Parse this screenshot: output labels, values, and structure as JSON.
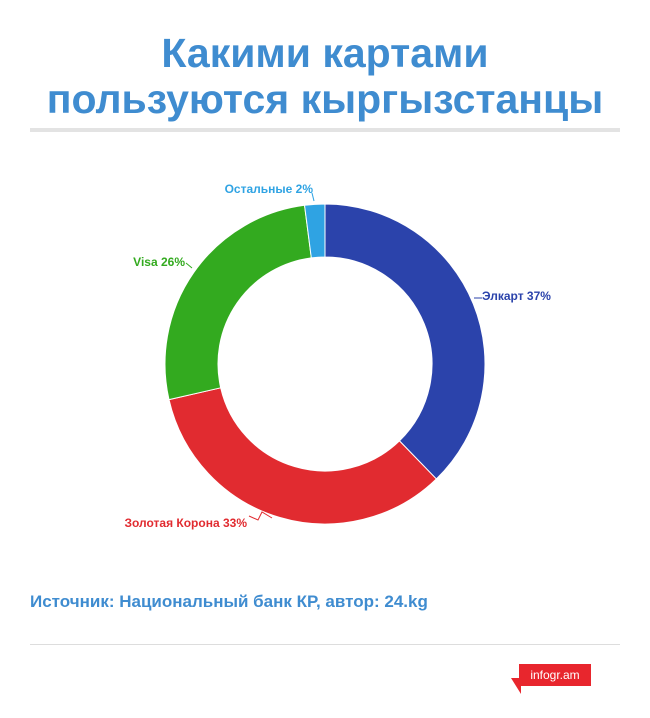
{
  "header": {
    "title_line1": "Какими картами",
    "title_line2": "пользуются кыргызстанцы"
  },
  "chart_data": {
    "type": "pie",
    "style": "donut",
    "slices": [
      {
        "label": "Элкарт 37%",
        "value": 37,
        "color": "#2b43ab",
        "label_color": "#2b43ab"
      },
      {
        "label": "Золотая Корона 33%",
        "value": 33,
        "color": "#e12b30",
        "label_color": "#e12b30"
      },
      {
        "label": "Visa 26%",
        "value": 26,
        "color": "#33aa1f",
        "label_color": "#33aa1f"
      },
      {
        "label": "Остальные 2%",
        "value": 2,
        "color": "#2fa3e3",
        "label_color": "#2fa3e3"
      }
    ]
  },
  "footer": {
    "source": "Источник: Национальный банк КР, автор: 24.kg",
    "logo_text": "infogr.am"
  },
  "colors": {
    "title": "#3f8cd0",
    "logo": "#e8262d"
  }
}
